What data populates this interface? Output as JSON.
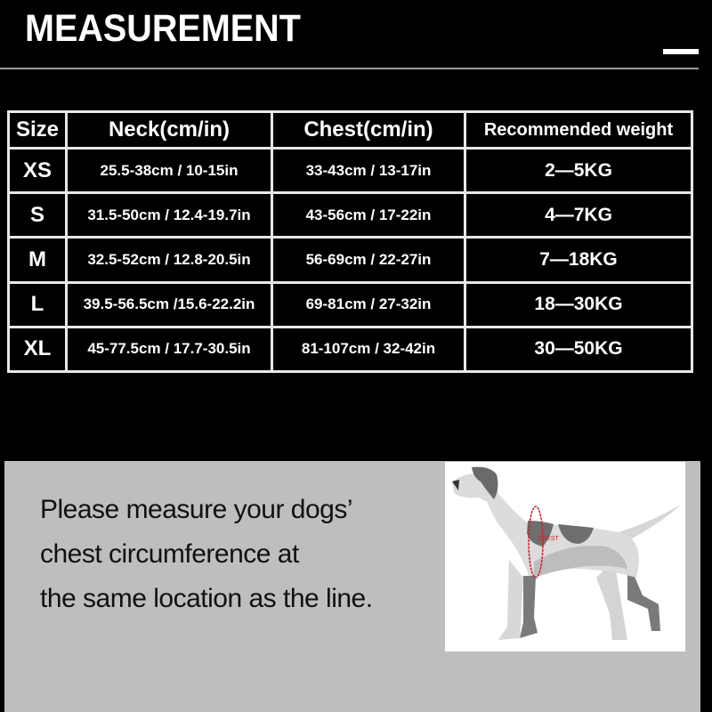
{
  "header": {
    "title": "MEASUREMENT"
  },
  "table": {
    "headers": [
      "Size",
      "Neck(cm/in)",
      "Chest(cm/in)",
      "Recommended weight"
    ],
    "rows": [
      [
        "XS",
        "25.5-38cm / 10-15in",
        "33-43cm / 13-17in",
        "2—5KG"
      ],
      [
        "S",
        "31.5-50cm / 12.4-19.7in",
        "43-56cm / 17-22in",
        "4—7KG"
      ],
      [
        "M",
        "32.5-52cm / 12.8-20.5in",
        "56-69cm / 22-27in",
        "7—18KG"
      ],
      [
        "L",
        "39.5-56.5cm /15.6-22.2in",
        "69-81cm / 27-32in",
        "18—30KG"
      ],
      [
        "XL",
        "45-77.5cm / 17.7-30.5in",
        "81-107cm / 32-42in",
        "30—50KG"
      ]
    ]
  },
  "instructions": {
    "lines": [
      "Please measure your dogs’",
      "chest circumference at",
      "the same location as the line."
    ]
  },
  "illustration": {
    "label": "CHEST",
    "accent": "#d0202a"
  }
}
